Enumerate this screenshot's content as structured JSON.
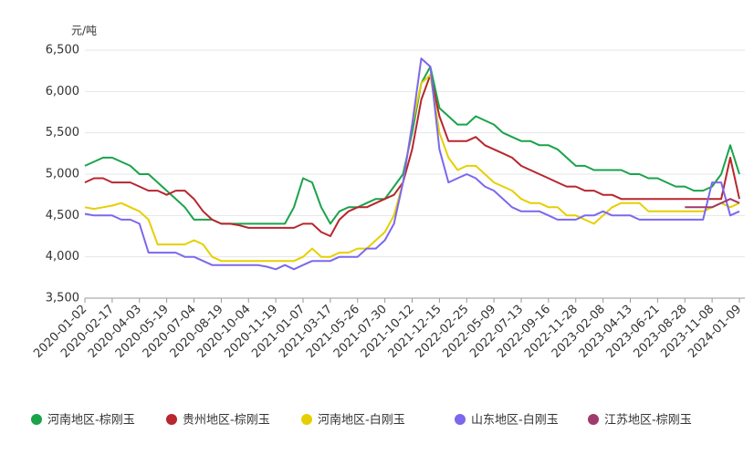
{
  "chart_data": {
    "type": "line",
    "y_label": "元/吨",
    "categories": [
      "2020-01-02",
      null,
      null,
      "2020-02-17",
      null,
      null,
      "2020-04-03",
      null,
      null,
      "2020-05-19",
      null,
      null,
      "2020-07-04",
      null,
      null,
      "2020-08-19",
      null,
      null,
      "2020-10-04",
      null,
      null,
      "2020-11-19",
      null,
      null,
      "2021-01-07",
      null,
      null,
      "2021-03-17",
      null,
      null,
      "2021-05-26",
      null,
      null,
      "2021-07-30",
      null,
      null,
      "2021-10-12",
      null,
      null,
      "2021-12-15",
      null,
      null,
      "2022-02-25",
      null,
      null,
      "2022-05-09",
      null,
      null,
      "2022-07-13",
      null,
      null,
      "2022-09-16",
      null,
      null,
      "2022-11-28",
      null,
      null,
      "2023-02-08",
      null,
      null,
      "2023-04-13",
      null,
      null,
      "2023-06-21",
      null,
      null,
      "2023-08-28",
      null,
      null,
      "2023-11-08",
      null,
      null,
      "2024-01-09"
    ],
    "series": [
      {
        "name": "河南地区-棕刚玉",
        "color": "#1aa34a",
        "values": [
          5100,
          5150,
          5200,
          5200,
          5150,
          5100,
          5000,
          5000,
          4900,
          4800,
          4700,
          4600,
          4450,
          4450,
          4450,
          4400,
          4400,
          4400,
          4400,
          4400,
          4400,
          4400,
          4400,
          4600,
          4950,
          4900,
          4600,
          4400,
          4550,
          4600,
          4600,
          4650,
          4700,
          4700,
          4850,
          5000,
          5500,
          6100,
          6300,
          5800,
          5700,
          5600,
          5600,
          5700,
          5650,
          5600,
          5500,
          5450,
          5400,
          5400,
          5350,
          5350,
          5300,
          5200,
          5100,
          5100,
          5050,
          5050,
          5050,
          5050,
          5000,
          5000,
          4950,
          4950,
          4900,
          4850,
          4850,
          4800,
          4800,
          4850,
          5000,
          5350,
          5000
        ]
      },
      {
        "name": "贵州地区-棕刚玉",
        "color": "#b8262e",
        "values": [
          4900,
          4950,
          4950,
          4900,
          4900,
          4900,
          4850,
          4800,
          4800,
          4750,
          4800,
          4800,
          4700,
          4550,
          4450,
          4400,
          4400,
          4380,
          4350,
          4350,
          4350,
          4350,
          4350,
          4350,
          4400,
          4400,
          4300,
          4250,
          4450,
          4550,
          4600,
          4600,
          4650,
          4700,
          4750,
          4900,
          5300,
          5900,
          6200,
          5700,
          5400,
          5400,
          5400,
          5450,
          5350,
          5300,
          5250,
          5200,
          5100,
          5050,
          5000,
          4950,
          4900,
          4850,
          4850,
          4800,
          4800,
          4750,
          4750,
          4700,
          4700,
          4700,
          4700,
          4700,
          4700,
          4700,
          4700,
          4700,
          4700,
          4700,
          4700,
          5200,
          4700
        ]
      },
      {
        "name": "河南地区-白刚玉",
        "color": "#e6cf00",
        "values": [
          4600,
          4580,
          4600,
          4620,
          4650,
          4600,
          4550,
          4450,
          4150,
          4150,
          4150,
          4150,
          4200,
          4150,
          4000,
          3950,
          3950,
          3950,
          3950,
          3950,
          3950,
          3950,
          3950,
          3950,
          4000,
          4100,
          4000,
          4000,
          4050,
          4050,
          4100,
          4100,
          4200,
          4300,
          4500,
          4900,
          5600,
          6100,
          6200,
          5500,
          5200,
          5050,
          5100,
          5100,
          5000,
          4900,
          4850,
          4800,
          4700,
          4650,
          4650,
          4600,
          4600,
          4500,
          4500,
          4450,
          4400,
          4500,
          4600,
          4650,
          4650,
          4650,
          4550,
          4550,
          4550,
          4550,
          4550,
          4550,
          4550,
          4600,
          4650,
          4600,
          4650
        ]
      },
      {
        "name": "山东地区-白刚玉",
        "color": "#7b68ee",
        "values": [
          4520,
          4500,
          4500,
          4500,
          4450,
          4450,
          4400,
          4050,
          4050,
          4050,
          4050,
          4000,
          4000,
          3950,
          3900,
          3900,
          3900,
          3900,
          3900,
          3900,
          3880,
          3850,
          3900,
          3850,
          3900,
          3950,
          3950,
          3950,
          4000,
          4000,
          4000,
          4100,
          4100,
          4200,
          4400,
          4900,
          5600,
          6400,
          6300,
          5300,
          4900,
          4950,
          5000,
          4950,
          4850,
          4800,
          4700,
          4600,
          4550,
          4550,
          4550,
          4500,
          4450,
          4450,
          4450,
          4500,
          4500,
          4550,
          4500,
          4500,
          4500,
          4450,
          4450,
          4450,
          4450,
          4450,
          4450,
          4450,
          4450,
          4900,
          4900,
          4500,
          4550
        ]
      },
      {
        "name": "江苏地区-棕刚玉",
        "color": "#a03a6a",
        "values": [
          null,
          null,
          null,
          null,
          null,
          null,
          null,
          null,
          null,
          null,
          null,
          null,
          null,
          null,
          null,
          null,
          null,
          null,
          null,
          null,
          null,
          null,
          null,
          null,
          null,
          null,
          null,
          null,
          null,
          null,
          null,
          null,
          null,
          null,
          null,
          null,
          null,
          null,
          null,
          null,
          null,
          null,
          null,
          null,
          null,
          null,
          null,
          null,
          null,
          null,
          null,
          null,
          null,
          null,
          null,
          null,
          null,
          null,
          null,
          null,
          null,
          null,
          null,
          null,
          null,
          null,
          4600,
          4600,
          4600,
          4600,
          4650,
          4700,
          4650
        ]
      }
    ],
    "ylim": [
      3500,
      6500
    ],
    "yticks": [
      {
        "value": 3500,
        "label": "3,500"
      },
      {
        "value": 4000,
        "label": "4,000"
      },
      {
        "value": 4500,
        "label": "4,500"
      },
      {
        "value": 5000,
        "label": "5,000"
      },
      {
        "value": 5500,
        "label": "5,500"
      },
      {
        "value": 6000,
        "label": "6,000"
      },
      {
        "value": 6500,
        "label": "6,500"
      }
    ],
    "grid": true
  }
}
